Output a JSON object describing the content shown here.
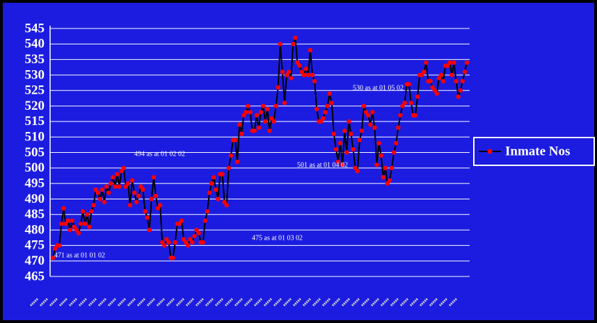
{
  "chart_data": {
    "type": "line",
    "series": [
      {
        "name": "Inmate Nos",
        "color": "#ff0000",
        "line_color": "#000000",
        "values": [
          471,
          474,
          475,
          475,
          482,
          487,
          482,
          483,
          480,
          483,
          481,
          480,
          479,
          482,
          486,
          482,
          485,
          481,
          486,
          488,
          493,
          492,
          490,
          493,
          489,
          494,
          492,
          495,
          497,
          494,
          498,
          494,
          499,
          500,
          494,
          495,
          488,
          496,
          492,
          489,
          491,
          494,
          493,
          486,
          484,
          480,
          490,
          497,
          491,
          487,
          488,
          476,
          475,
          477,
          476,
          471,
          471,
          476,
          482,
          482,
          483,
          477,
          476,
          475,
          477,
          476,
          478,
          480,
          479,
          476,
          476,
          483,
          486,
          492,
          495,
          497,
          493,
          490,
          498,
          498,
          489,
          488,
          500,
          504,
          509,
          509,
          502,
          514,
          511,
          517,
          518,
          520,
          518,
          512,
          512,
          517,
          513,
          518,
          520,
          515,
          519,
          512,
          516,
          515,
          520,
          526,
          540,
          531,
          521,
          530,
          531,
          529,
          540,
          542,
          534,
          533,
          531,
          530,
          532,
          530,
          538,
          530,
          528,
          519,
          515,
          515,
          516,
          518,
          520,
          524,
          521,
          511,
          506,
          502,
          508,
          501,
          512,
          505,
          515,
          511,
          506,
          500,
          499,
          509,
          512,
          520,
          518,
          517,
          514,
          518,
          513,
          501,
          508,
          504,
          497,
          500,
          495,
          496,
          500,
          505,
          508,
          513,
          517,
          520,
          521,
          527,
          527,
          521,
          517,
          517,
          523,
          530,
          530,
          531,
          534,
          528,
          528,
          526,
          525,
          524,
          529,
          530,
          528,
          533,
          533,
          534,
          530,
          534,
          528,
          523,
          525,
          528,
          531,
          534
        ]
      }
    ],
    "annotations": [
      {
        "text": "471 as at 01 01 02"
      },
      {
        "text": "494 as at 01 02 02"
      },
      {
        "text": "475 as at 01 03 02"
      },
      {
        "text": "501 as at 01 04 02"
      },
      {
        "text": "530 as at 01 05 02"
      }
    ],
    "ylim": [
      465,
      545
    ],
    "yticks": [
      465,
      470,
      475,
      480,
      485,
      490,
      495,
      500,
      505,
      510,
      515,
      520,
      525,
      530,
      535,
      540,
      545
    ],
    "grid": true,
    "legend": "right"
  }
}
